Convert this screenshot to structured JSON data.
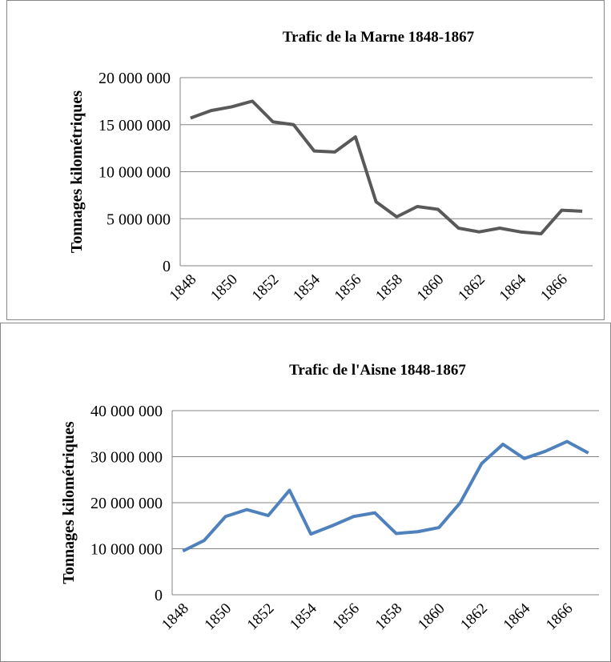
{
  "chart_data": [
    {
      "type": "line",
      "title": "Trafic de la Marne 1848-1867",
      "y_label": "Tonnages kilométriques",
      "categories": [
        "1848",
        null,
        "1850",
        null,
        "1852",
        null,
        "1854",
        null,
        "1856",
        null,
        "1858",
        null,
        "1860",
        null,
        "1862",
        null,
        "1864",
        null,
        "1866",
        null
      ],
      "series": [
        {
          "name": "Trafic de la Marne",
          "color": "#595959",
          "values": [
            15700000,
            16500000,
            16900000,
            17500000,
            15300000,
            15000000,
            12200000,
            12100000,
            13700000,
            6800000,
            5200000,
            6300000,
            6000000,
            4000000,
            3600000,
            4000000,
            3600000,
            3400000,
            5900000,
            5800000
          ]
        }
      ],
      "ylim": [
        0,
        20000000
      ],
      "yticks": [
        0,
        {
          "value": 5000000,
          "label": "5 000 000"
        },
        {
          "value": 10000000,
          "label": "10 000 000"
        },
        {
          "value": 15000000,
          "label": "15 000 000"
        },
        {
          "value": 20000000,
          "label": "20 000 000"
        }
      ],
      "grid": true
    },
    {
      "type": "line",
      "title": "Trafic de l'Aisne 1848-1867",
      "y_label": "Tonnages kilométriques",
      "categories": [
        "1848",
        null,
        "1850",
        null,
        "1852",
        null,
        "1854",
        null,
        "1856",
        null,
        "1858",
        null,
        "1860",
        null,
        "1862",
        null,
        "1864",
        null,
        "1866",
        null
      ],
      "series": [
        {
          "name": "Trafic de l'Aisne",
          "color": "#4f81bd",
          "values": [
            9500000,
            11800000,
            17000000,
            18500000,
            17200000,
            22700000,
            13200000,
            15000000,
            17000000,
            17800000,
            13300000,
            13700000,
            14600000,
            20000000,
            28500000,
            32700000,
            29600000,
            31200000,
            33300000,
            30800000
          ]
        }
      ],
      "ylim": [
        0,
        40000000
      ],
      "yticks": [
        0,
        {
          "value": 10000000,
          "label": "10 000 000"
        },
        {
          "value": 20000000,
          "label": "20 000 000"
        },
        {
          "value": 30000000,
          "label": "30 000 000"
        },
        {
          "value": 40000000,
          "label": "40 000 000"
        }
      ],
      "grid": true
    }
  ]
}
